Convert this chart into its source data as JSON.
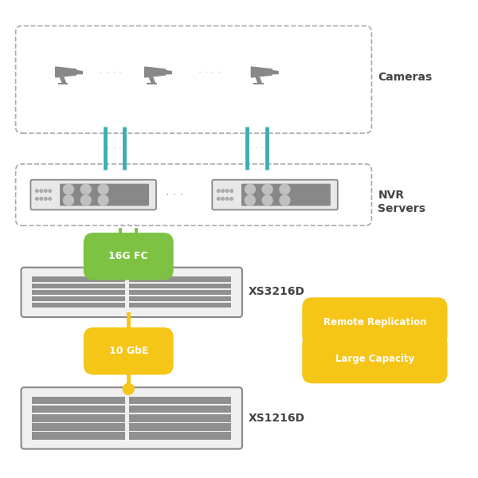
{
  "bg_color": "#ffffff",
  "dashed_box_color": "#aaaaaa",
  "gray_color": "#888888",
  "gray_light": "#aaaaaa",
  "gray_slot": "#999999",
  "teal_color": "#3aafb2",
  "green_color": "#7dc242",
  "yellow_color": "#f5c518",
  "dark_text": "#444444",
  "cameras_label": "Cameras",
  "nvr_label1": "NVR",
  "nvr_label2": "Servers",
  "fc_label": "16G FC",
  "gbe_label": "10 GbE",
  "xs3216_label": "XS3216D",
  "xs1216_label": "XS1216D",
  "remote_label": "Remote Replication",
  "capacity_label": "Large Capacity"
}
